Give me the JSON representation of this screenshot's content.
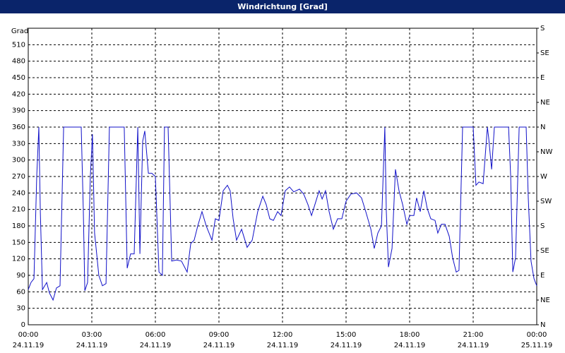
{
  "chart_data": {
    "type": "line",
    "title": "Windrichtung [Grad]",
    "y_label": "Grad",
    "color": "#1010c8",
    "grid": true,
    "x": [
      0.0,
      0.13,
      0.27,
      0.4,
      0.5,
      0.57,
      0.67,
      0.87,
      1.0,
      1.17,
      1.33,
      1.5,
      1.67,
      2.5,
      2.6,
      2.67,
      2.8,
      2.93,
      3.03,
      3.13,
      3.23,
      3.33,
      3.5,
      3.67,
      3.83,
      4.53,
      4.67,
      4.83,
      5.0,
      5.17,
      5.27,
      5.4,
      5.5,
      5.67,
      5.83,
      6.0,
      6.17,
      6.33,
      6.43,
      6.6,
      6.77,
      7.0,
      7.23,
      7.5,
      7.67,
      7.83,
      8.0,
      8.2,
      8.4,
      8.67,
      8.83,
      9.0,
      9.2,
      9.4,
      9.53,
      9.67,
      9.83,
      10.07,
      10.33,
      10.57,
      10.83,
      11.07,
      11.23,
      11.4,
      11.57,
      11.77,
      11.93,
      12.13,
      12.33,
      12.53,
      12.8,
      13.0,
      13.2,
      13.37,
      13.53,
      13.73,
      13.87,
      14.03,
      14.2,
      14.4,
      14.6,
      14.8,
      15.0,
      15.23,
      15.5,
      15.73,
      15.93,
      16.17,
      16.33,
      16.5,
      16.67,
      16.83,
      16.9,
      17.0,
      17.17,
      17.33,
      17.5,
      17.67,
      17.87,
      18.0,
      18.2,
      18.33,
      18.5,
      18.67,
      18.83,
      19.0,
      19.2,
      19.33,
      19.5,
      19.67,
      19.87,
      20.03,
      20.2,
      20.33,
      20.5,
      21.0,
      21.13,
      21.27,
      21.47,
      21.67,
      21.73,
      21.87,
      22.0,
      22.67,
      22.77,
      22.87,
      23.0,
      23.17,
      23.5,
      23.6,
      23.73,
      23.87,
      24.0
    ],
    "values": [
      64,
      77,
      84,
      270,
      360,
      206,
      64,
      77,
      58,
      45,
      67,
      71,
      360,
      360,
      206,
      62,
      77,
      270,
      347,
      167,
      129,
      90,
      71,
      75,
      360,
      360,
      103,
      129,
      129,
      360,
      129,
      334,
      353,
      276,
      276,
      270,
      96,
      90,
      360,
      360,
      116,
      118,
      116,
      96,
      148,
      154,
      180,
      206,
      180,
      154,
      193,
      190,
      244,
      254,
      244,
      193,
      154,
      174,
      141,
      154,
      206,
      234,
      219,
      193,
      190,
      206,
      199,
      244,
      251,
      242,
      247,
      238,
      219,
      199,
      219,
      244,
      229,
      244,
      206,
      174,
      193,
      193,
      225,
      238,
      240,
      231,
      206,
      174,
      139,
      167,
      180,
      360,
      206,
      105,
      139,
      283,
      244,
      219,
      183,
      199,
      199,
      231,
      206,
      244,
      212,
      193,
      190,
      167,
      183,
      183,
      161,
      122,
      96,
      99,
      360,
      360,
      254,
      260,
      257,
      360,
      341,
      283,
      360,
      360,
      270,
      96,
      122,
      360,
      360,
      231,
      116,
      84,
      71
    ],
    "xlim": [
      0,
      24
    ],
    "xticks": [
      {
        "value": 0,
        "label": "00:00"
      },
      {
        "value": 3,
        "label": "03:00"
      },
      {
        "value": 6,
        "label": "06:00"
      },
      {
        "value": 9,
        "label": "09:00"
      },
      {
        "value": 12,
        "label": "12:00"
      },
      {
        "value": 15,
        "label": "15:00"
      },
      {
        "value": 18,
        "label": "18:00"
      },
      {
        "value": 21,
        "label": "21:00"
      },
      {
        "value": 24,
        "label": "00:00"
      }
    ],
    "xtick_dates": [
      "24.11.19",
      "24.11.19",
      "24.11.19",
      "24.11.19",
      "24.11.19",
      "24.11.19",
      "24.11.19",
      "24.11.19",
      "25.11.19"
    ],
    "ylim": [
      0,
      540
    ],
    "yticks": [
      0,
      30,
      60,
      90,
      120,
      150,
      180,
      210,
      240,
      270,
      300,
      330,
      360,
      390,
      420,
      450,
      480,
      510
    ],
    "y2lim": [
      0,
      540
    ],
    "y2ticks": [
      {
        "value": 0,
        "label": "N"
      },
      {
        "value": 45,
        "label": "NE"
      },
      {
        "value": 90,
        "label": "E"
      },
      {
        "value": 135,
        "label": "SE"
      },
      {
        "value": 180,
        "label": "S"
      },
      {
        "value": 225,
        "label": "SW"
      },
      {
        "value": 270,
        "label": "W"
      },
      {
        "value": 315,
        "label": "NW"
      },
      {
        "value": 360,
        "label": "N"
      },
      {
        "value": 405,
        "label": "NE"
      },
      {
        "value": 450,
        "label": "E"
      },
      {
        "value": 495,
        "label": "SE"
      },
      {
        "value": 540,
        "label": "S"
      }
    ]
  }
}
